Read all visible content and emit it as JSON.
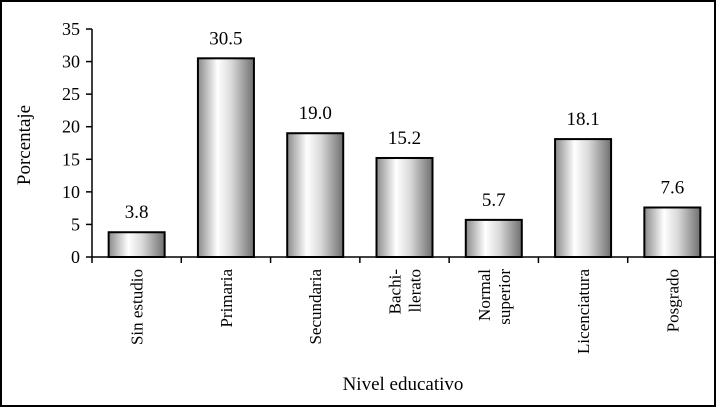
{
  "chart_data": {
    "type": "bar",
    "categories": [
      "Sin estudio",
      "Primaria",
      "Secundaria",
      "Bachi-\nllerato",
      "Normal\nsuperior",
      "Licenciatura",
      "Posgrado"
    ],
    "values": [
      3.8,
      30.5,
      19.0,
      15.2,
      5.7,
      18.1,
      7.6
    ],
    "data_labels": [
      "3.8",
      "30.5",
      "19.0",
      "15.2",
      "5.7",
      "18.1",
      "7.6"
    ],
    "title": "",
    "xlabel": "Nivel educativo",
    "ylabel": "Porcentaje",
    "ylim": [
      0,
      35
    ],
    "yticks": [
      0,
      5,
      10,
      15,
      20,
      25,
      30,
      35
    ],
    "grid": false,
    "legend": "none",
    "bar_style": "silver-gradient",
    "bar_stroke": "#000000"
  }
}
